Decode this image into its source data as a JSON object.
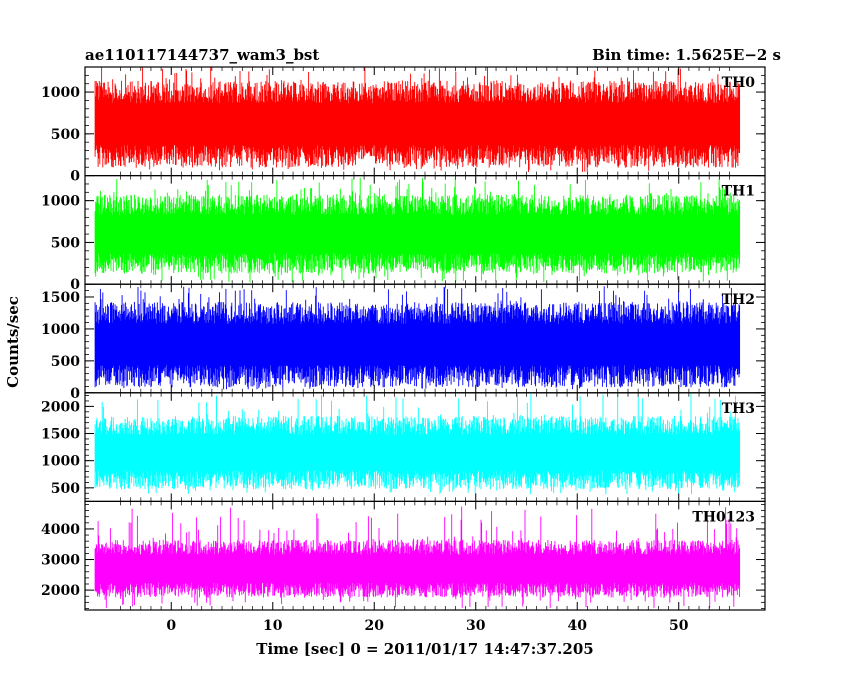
{
  "header": {
    "obs_id": "ae110117144737_wam3_bst",
    "bin_time": "Bin time: 1.5625E−2 s"
  },
  "chart_data": {
    "type": "line",
    "xlabel": "Time [sec] 0 = 2011/01/17 14:47:37.205",
    "ylabel": "Counts/sec",
    "xlim": [
      -8.5,
      58.5
    ],
    "x_data_range": [
      -7.5,
      56.0
    ],
    "xticks": [
      0,
      10,
      20,
      30,
      40,
      50
    ],
    "panels": [
      {
        "name": "TH0",
        "color": "#ff0000",
        "ylim": [
          0,
          1300
        ],
        "yticks": [
          0,
          500,
          1000
        ],
        "typical_range": [
          230,
          1000
        ],
        "peak_range": [
          40,
          1300
        ]
      },
      {
        "name": "TH1",
        "color": "#00ff00",
        "ylim": [
          0,
          1300
        ],
        "yticks": [
          0,
          500,
          1000
        ],
        "typical_range": [
          250,
          950
        ],
        "peak_range": [
          20,
          1280
        ]
      },
      {
        "name": "TH2",
        "color": "#0000ff",
        "ylim": [
          0,
          1700
        ],
        "yticks": [
          0,
          500,
          1000,
          1500
        ],
        "typical_range": [
          260,
          1250
        ],
        "peak_range": [
          50,
          1700
        ]
      },
      {
        "name": "TH3",
        "color": "#00ffff",
        "ylim": [
          250,
          2250
        ],
        "yticks": [
          500,
          1000,
          1500,
          2000
        ],
        "typical_range": [
          650,
          1650
        ],
        "peak_range": [
          380,
          2250
        ]
      },
      {
        "name": "TH0123",
        "color": "#ff00ff",
        "ylim": [
          1350,
          4900
        ],
        "yticks": [
          2000,
          3000,
          4000
        ],
        "typical_range": [
          2000,
          3400
        ],
        "peak_range": [
          1400,
          4800
        ]
      }
    ]
  }
}
